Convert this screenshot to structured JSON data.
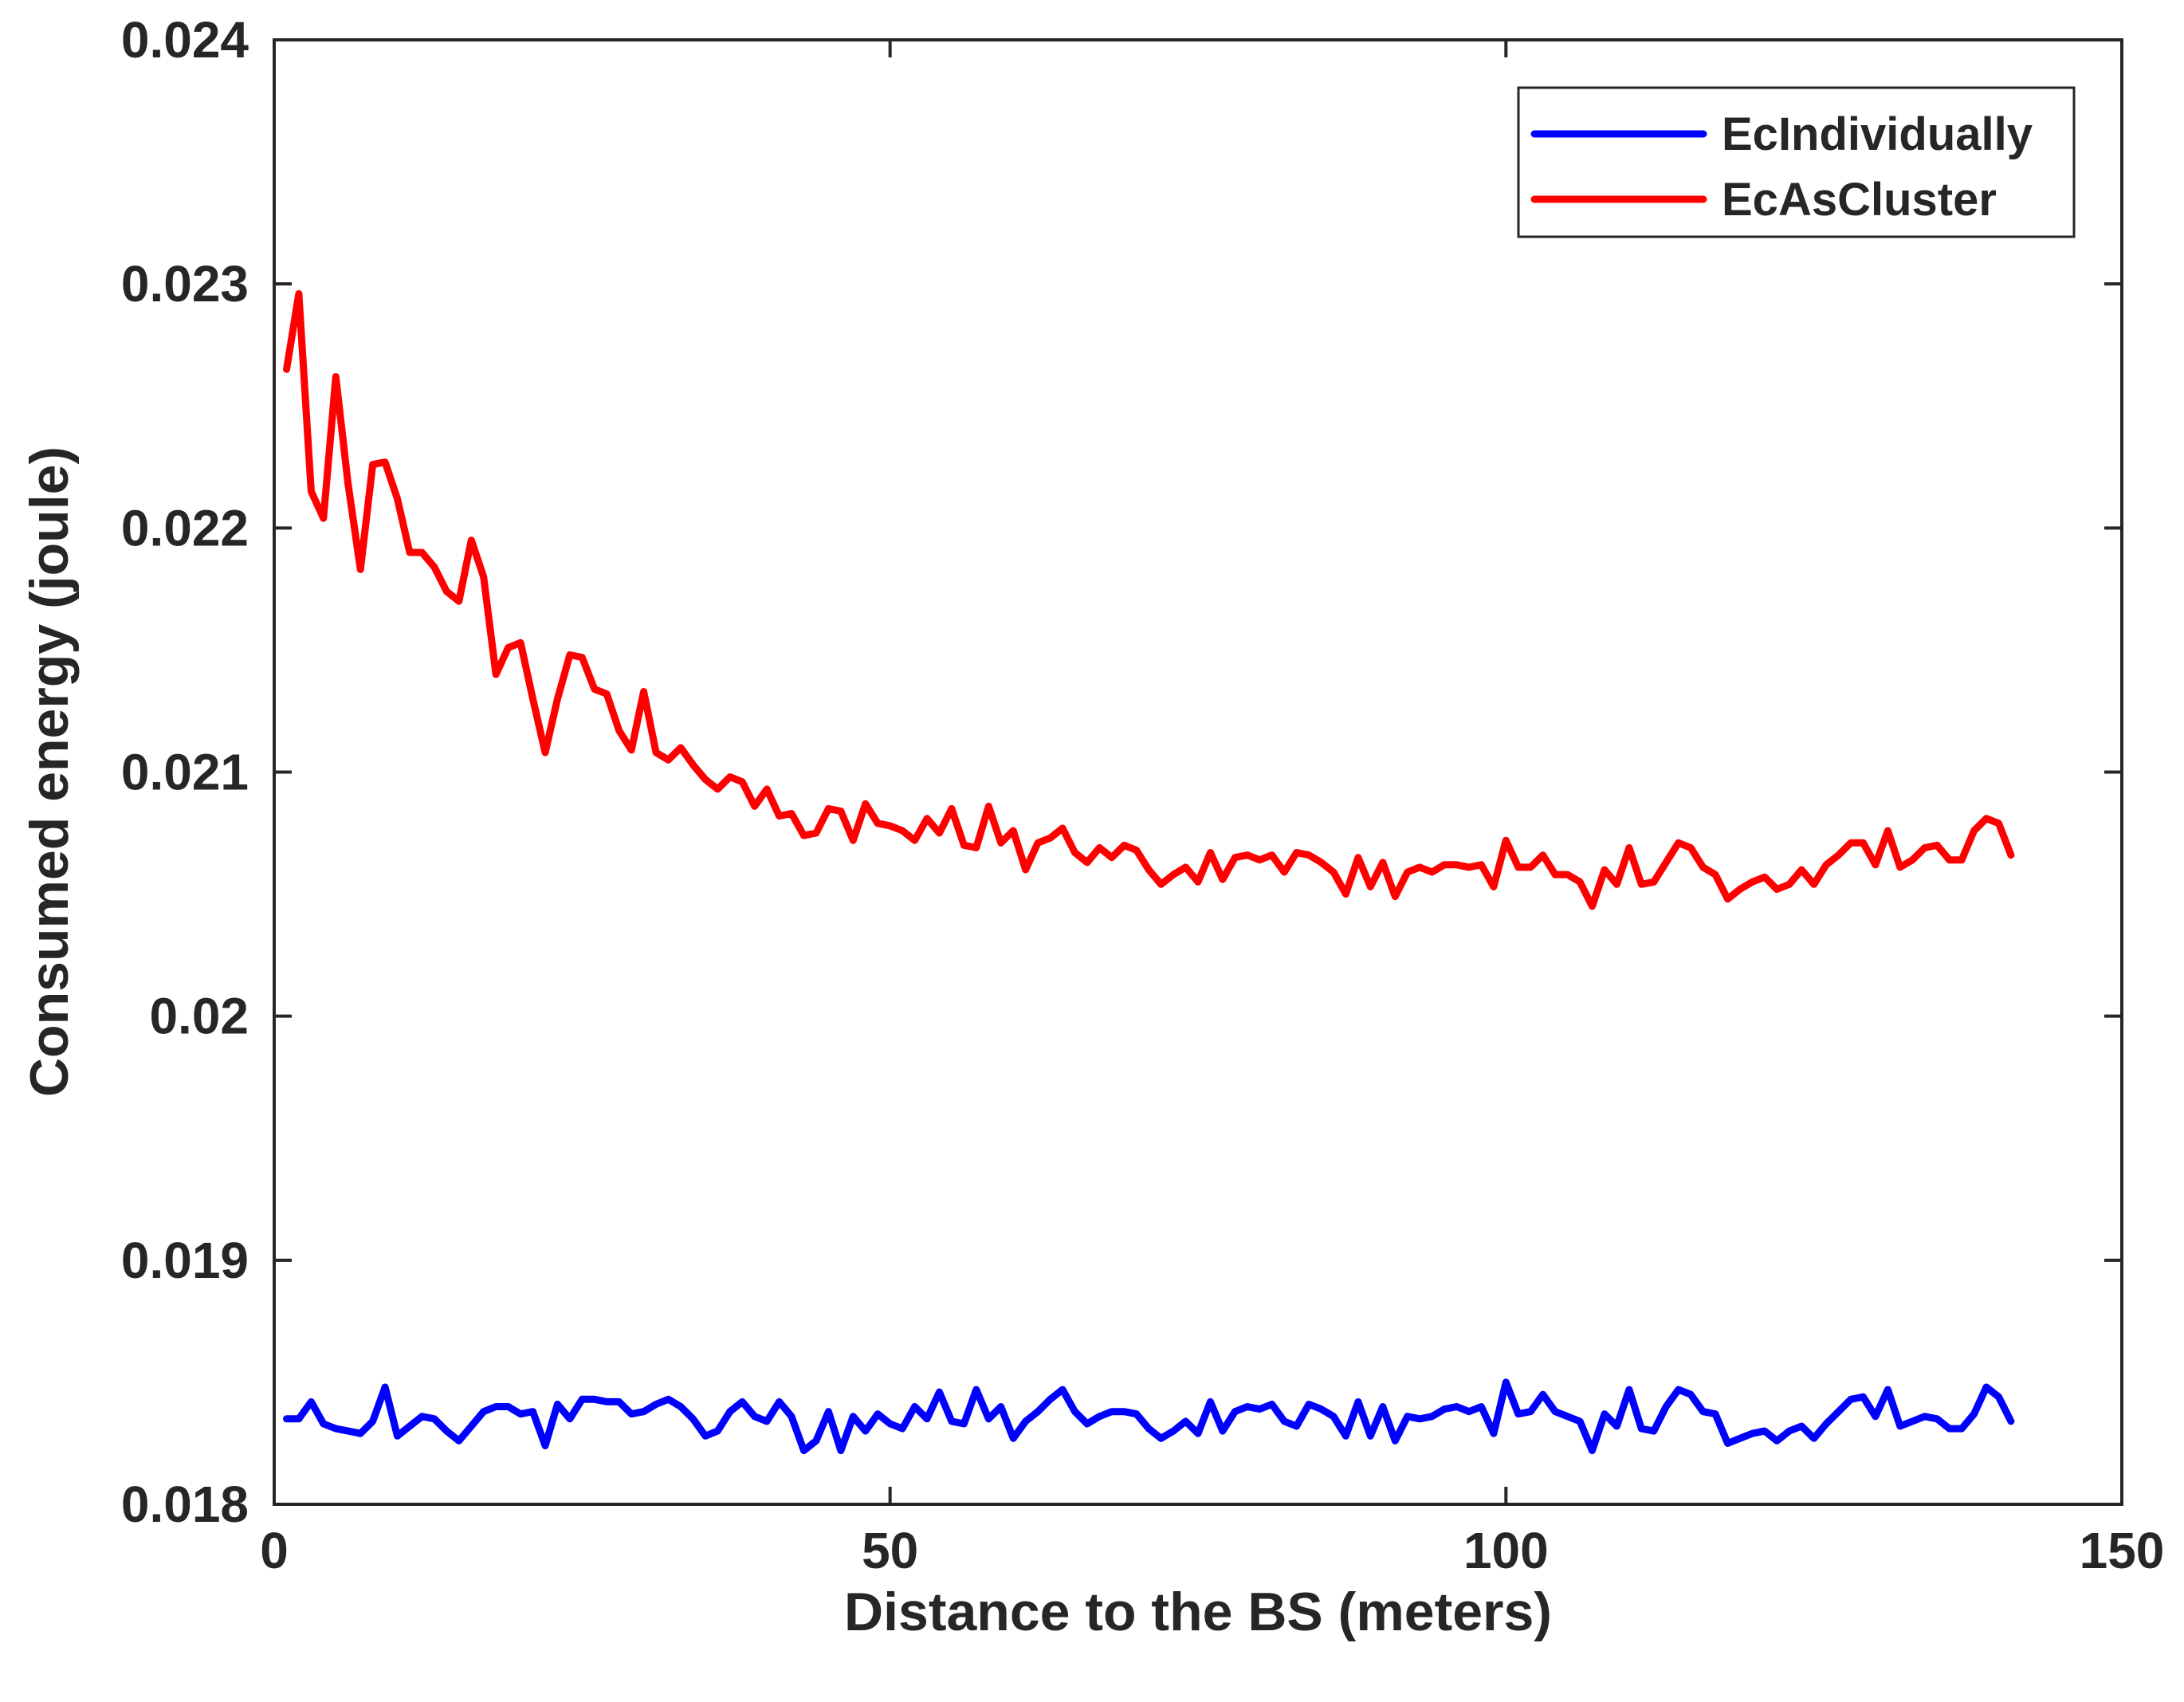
{
  "chart_data": {
    "type": "line",
    "title": "",
    "xlabel": "Distance to the BS (meters)",
    "ylabel": "Consumed energy (joule)",
    "xlim": [
      0,
      150
    ],
    "ylim": [
      0.018,
      0.024
    ],
    "xticks": [
      "0",
      "50",
      "100",
      "150"
    ],
    "xtick_values": [
      0,
      50,
      100,
      150
    ],
    "yticks": [
      "0.018",
      "0.019",
      "0.02",
      "0.021",
      "0.022",
      "0.023",
      "0.024"
    ],
    "ytick_values": [
      0.018,
      0.019,
      0.02,
      0.021,
      0.022,
      0.023,
      0.024
    ],
    "grid": false,
    "legend_position": "top-right",
    "series": [
      {
        "name": "EcIndividually",
        "color": "#0000ff",
        "x": [
          1,
          2,
          3,
          4,
          5,
          6,
          7,
          8,
          9,
          10,
          11,
          12,
          13,
          14,
          15,
          16,
          17,
          18,
          19,
          20,
          21,
          22,
          23,
          24,
          25,
          26,
          27,
          28,
          29,
          30,
          31,
          32,
          33,
          34,
          35,
          36,
          37,
          38,
          39,
          40,
          41,
          42,
          43,
          44,
          45,
          46,
          47,
          48,
          49,
          50,
          51,
          52,
          53,
          54,
          55,
          56,
          57,
          58,
          59,
          60,
          61,
          62,
          63,
          64,
          65,
          66,
          67,
          68,
          69,
          70,
          71,
          72,
          73,
          74,
          75,
          76,
          77,
          78,
          79,
          80,
          81,
          82,
          83,
          84,
          85,
          86,
          87,
          88,
          89,
          90,
          91,
          92,
          93,
          94,
          95,
          96,
          97,
          98,
          99,
          100,
          101,
          102,
          103,
          104,
          105,
          106,
          107,
          108,
          109,
          110,
          111,
          112,
          113,
          114,
          115,
          116,
          117,
          118,
          119,
          120,
          121,
          122,
          123,
          124,
          125,
          126,
          127,
          128,
          129,
          130,
          131,
          132,
          133,
          134,
          135,
          136,
          137,
          138,
          139,
          140,
          141
        ],
        "y": [
          0.01835,
          0.01835,
          0.01842,
          0.01833,
          0.01831,
          0.0183,
          0.01829,
          0.01834,
          0.01848,
          0.01828,
          0.01832,
          0.01836,
          0.01835,
          0.0183,
          0.01826,
          0.01832,
          0.01838,
          0.0184,
          0.0184,
          0.01837,
          0.01838,
          0.01824,
          0.01841,
          0.01835,
          0.01843,
          0.01843,
          0.01842,
          0.01842,
          0.01837,
          0.01838,
          0.01841,
          0.01843,
          0.0184,
          0.01835,
          0.01828,
          0.0183,
          0.01838,
          0.01842,
          0.01836,
          0.01834,
          0.01842,
          0.01836,
          0.01822,
          0.01826,
          0.01838,
          0.01822,
          0.01836,
          0.0183,
          0.01837,
          0.01833,
          0.01831,
          0.0184,
          0.01835,
          0.01846,
          0.01834,
          0.01833,
          0.01847,
          0.01835,
          0.0184,
          0.01827,
          0.01834,
          0.01838,
          0.01843,
          0.01847,
          0.01838,
          0.01833,
          0.01836,
          0.01838,
          0.01838,
          0.01837,
          0.01831,
          0.01827,
          0.0183,
          0.01834,
          0.01829,
          0.01842,
          0.0183,
          0.01838,
          0.0184,
          0.01839,
          0.01841,
          0.01834,
          0.01832,
          0.01841,
          0.01839,
          0.01836,
          0.01828,
          0.01842,
          0.01828,
          0.0184,
          0.01826,
          0.01836,
          0.01835,
          0.01836,
          0.01839,
          0.0184,
          0.01838,
          0.0184,
          0.01829,
          0.0185,
          0.01837,
          0.01838,
          0.01845,
          0.01838,
          0.01836,
          0.01834,
          0.01822,
          0.01837,
          0.01832,
          0.01847,
          0.01831,
          0.0183,
          0.0184,
          0.01847,
          0.01845,
          0.01838,
          0.01837,
          0.01825,
          0.01827,
          0.01829,
          0.0183,
          0.01826,
          0.0183,
          0.01832,
          0.01827,
          0.01833,
          0.01838,
          0.01843,
          0.01844,
          0.01836,
          0.01847,
          0.01832,
          0.01834,
          0.01836,
          0.01835,
          0.01831,
          0.01831,
          0.01837,
          0.01848,
          0.01844,
          0.01834
        ]
      },
      {
        "name": "EcAsCluster",
        "color": "#ff0000",
        "x": [
          1,
          2,
          3,
          4,
          5,
          6,
          7,
          8,
          9,
          10,
          11,
          12,
          13,
          14,
          15,
          16,
          17,
          18,
          19,
          20,
          21,
          22,
          23,
          24,
          25,
          26,
          27,
          28,
          29,
          30,
          31,
          32,
          33,
          34,
          35,
          36,
          37,
          38,
          39,
          40,
          41,
          42,
          43,
          44,
          45,
          46,
          47,
          48,
          49,
          50,
          51,
          52,
          53,
          54,
          55,
          56,
          57,
          58,
          59,
          60,
          61,
          62,
          63,
          64,
          65,
          66,
          67,
          68,
          69,
          70,
          71,
          72,
          73,
          74,
          75,
          76,
          77,
          78,
          79,
          80,
          81,
          82,
          83,
          84,
          85,
          86,
          87,
          88,
          89,
          90,
          91,
          92,
          93,
          94,
          95,
          96,
          97,
          98,
          99,
          100,
          101,
          102,
          103,
          104,
          105,
          106,
          107,
          108,
          109,
          110,
          111,
          112,
          113,
          114,
          115,
          116,
          117,
          118,
          119,
          120,
          121,
          122,
          123,
          124,
          125,
          126,
          127,
          128,
          129,
          130,
          131,
          132,
          133,
          134,
          135,
          136,
          137,
          138,
          139,
          140,
          141
        ],
        "y": [
          0.02265,
          0.02296,
          0.02215,
          0.02204,
          0.02262,
          0.02218,
          0.02183,
          0.02226,
          0.02227,
          0.02212,
          0.0219,
          0.0219,
          0.02184,
          0.02174,
          0.0217,
          0.02195,
          0.0218,
          0.0214,
          0.02151,
          0.02153,
          0.0213,
          0.02108,
          0.0213,
          0.02148,
          0.02147,
          0.02134,
          0.02132,
          0.02117,
          0.02109,
          0.02133,
          0.02108,
          0.02105,
          0.0211,
          0.02103,
          0.02097,
          0.02093,
          0.02098,
          0.02096,
          0.02086,
          0.02093,
          0.02082,
          0.02083,
          0.02074,
          0.02075,
          0.02085,
          0.02084,
          0.02072,
          0.02087,
          0.02079,
          0.02078,
          0.02076,
          0.02072,
          0.02081,
          0.02075,
          0.02085,
          0.0207,
          0.02069,
          0.02086,
          0.02071,
          0.02076,
          0.0206,
          0.02071,
          0.02073,
          0.02077,
          0.02067,
          0.02063,
          0.02069,
          0.02065,
          0.0207,
          0.02068,
          0.0206,
          0.02054,
          0.02058,
          0.02061,
          0.02055,
          0.02067,
          0.02056,
          0.02065,
          0.02066,
          0.02064,
          0.02066,
          0.02059,
          0.02067,
          0.02066,
          0.02063,
          0.02059,
          0.0205,
          0.02065,
          0.02053,
          0.02063,
          0.02049,
          0.02059,
          0.02061,
          0.02059,
          0.02062,
          0.02062,
          0.02061,
          0.02062,
          0.02053,
          0.02072,
          0.02061,
          0.02061,
          0.02066,
          0.02058,
          0.02058,
          0.02055,
          0.02045,
          0.0206,
          0.02054,
          0.02069,
          0.02054,
          0.02055,
          0.02063,
          0.02071,
          0.02069,
          0.02061,
          0.02058,
          0.02048,
          0.02052,
          0.02055,
          0.02057,
          0.02052,
          0.02054,
          0.0206,
          0.02054,
          0.02062,
          0.02066,
          0.02071,
          0.02071,
          0.02062,
          0.02076,
          0.02061,
          0.02064,
          0.02069,
          0.0207,
          0.02064,
          0.02064,
          0.02076,
          0.02081,
          0.02079,
          0.02066
        ]
      }
    ]
  }
}
